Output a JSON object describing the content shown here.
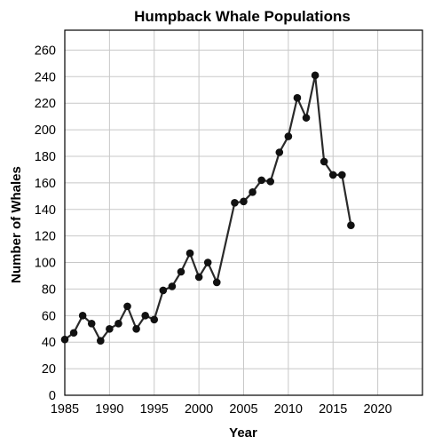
{
  "chart_data": {
    "type": "line",
    "title": "Humpback Whale Populations",
    "xlabel": "Year",
    "ylabel": "Number of Whales",
    "xlim": [
      1985,
      2025
    ],
    "ylim": [
      0,
      275
    ],
    "xticks": [
      1985,
      1990,
      1995,
      2000,
      2005,
      2010,
      2015,
      2020
    ],
    "yticks": [
      0,
      20,
      40,
      60,
      80,
      100,
      120,
      140,
      160,
      180,
      200,
      220,
      240,
      260
    ],
    "grid": true,
    "legend": "none",
    "colors": {
      "line": "#2a2a2a",
      "marker": "#111111",
      "grid": "#c8c8c8"
    },
    "series": [
      {
        "x": [
          1985,
          1986,
          1987,
          1988,
          1989,
          1990,
          1991,
          1992,
          1993,
          1994,
          1995,
          1996,
          1997,
          1998,
          1999,
          2000,
          2001,
          2002,
          2004,
          2005,
          2006,
          2007,
          2008,
          2009,
          2010,
          2011,
          2012,
          2013,
          2014,
          2015,
          2016,
          2017
        ],
        "values": [
          42,
          47,
          60,
          54,
          41,
          50,
          54,
          67,
          50,
          60,
          57,
          79,
          82,
          93,
          107,
          89,
          100,
          85,
          145,
          146,
          153,
          162,
          161,
          183,
          195,
          224,
          209,
          241,
          176,
          166,
          166,
          128
        ]
      }
    ]
  }
}
